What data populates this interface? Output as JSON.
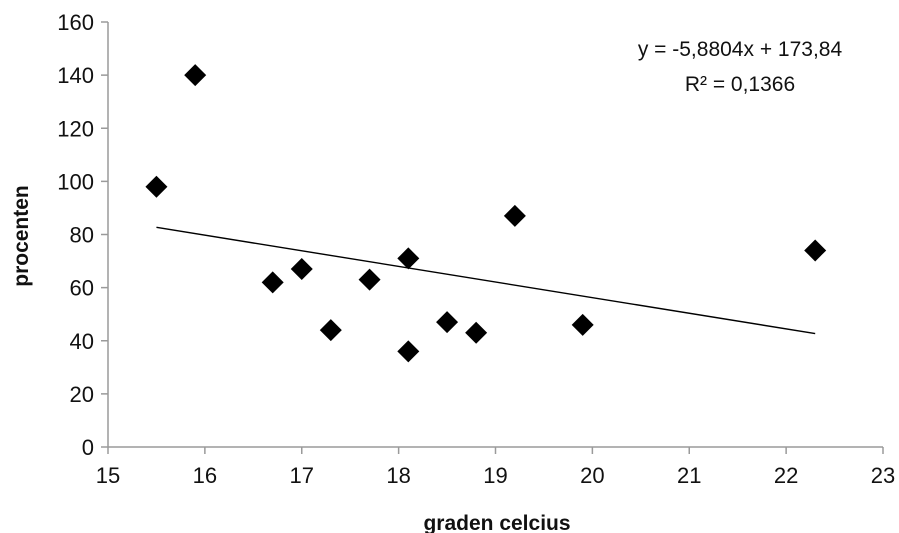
{
  "chart_data": {
    "type": "scatter",
    "xlabel": "graden celcius",
    "ylabel": "procenten",
    "xlim": [
      15,
      23
    ],
    "ylim": [
      0,
      160
    ],
    "x_ticks": [
      "15",
      "16",
      "17",
      "18",
      "19",
      "20",
      "21",
      "22",
      "23"
    ],
    "y_ticks": [
      "0",
      "20",
      "40",
      "60",
      "80",
      "100",
      "120",
      "140",
      "160"
    ],
    "points": [
      {
        "x": 15.5,
        "y": 98
      },
      {
        "x": 15.9,
        "y": 140
      },
      {
        "x": 16.7,
        "y": 62
      },
      {
        "x": 17.0,
        "y": 67
      },
      {
        "x": 17.3,
        "y": 44
      },
      {
        "x": 17.7,
        "y": 63
      },
      {
        "x": 18.1,
        "y": 71
      },
      {
        "x": 18.1,
        "y": 36
      },
      {
        "x": 18.5,
        "y": 47
      },
      {
        "x": 18.8,
        "y": 43
      },
      {
        "x": 19.2,
        "y": 87
      },
      {
        "x": 19.9,
        "y": 46
      },
      {
        "x": 22.3,
        "y": 74
      }
    ],
    "trendline": {
      "slope": -5.8804,
      "intercept": 173.84,
      "x_range": [
        15.5,
        22.3
      ],
      "equation_label": "y = -5,8804x + 173,84",
      "r2_label": "R² = 0,1366"
    },
    "grid": false,
    "legend": "none",
    "marker": "diamond",
    "colors": {
      "marker": "#000000",
      "trendline": "#000000",
      "axis": "#9a9a9a"
    }
  }
}
